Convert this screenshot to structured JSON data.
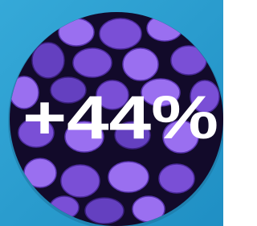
{
  "badge": {
    "label": "+44%"
  }
}
